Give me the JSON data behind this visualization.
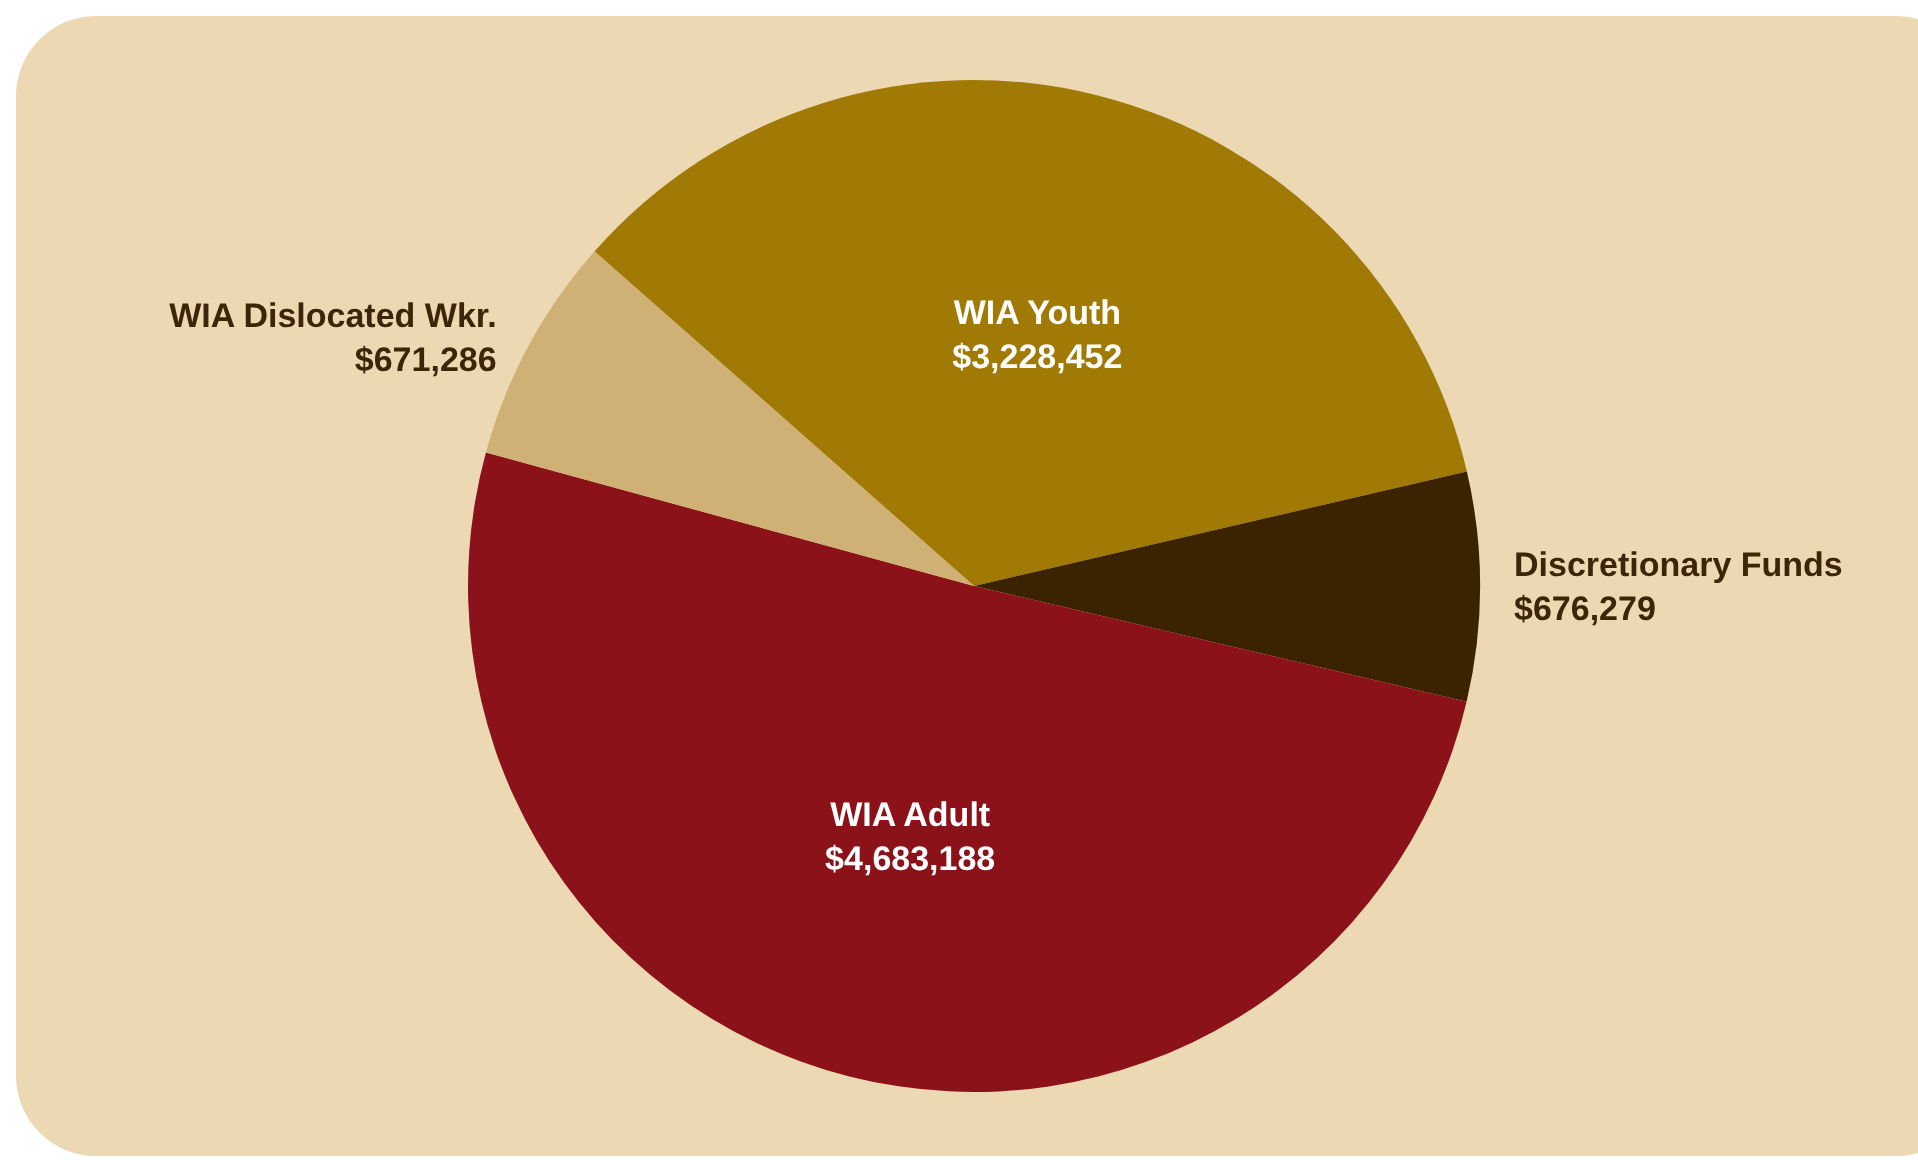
{
  "chart_data": {
    "type": "pie",
    "categories": [
      "WIA Youth",
      "Discretionary Funds",
      "WIA Adult",
      "WIA Dislocated Wkr."
    ],
    "values": [
      3228452,
      676279,
      4683188,
      671286
    ],
    "value_labels": [
      "$3,228,452",
      "$676,279",
      "$4,683,188",
      "$671,286"
    ],
    "colors": [
      "#a07a04",
      "#3b2200",
      "#8b1218",
      "#cfb176"
    ],
    "legend": false
  }
}
